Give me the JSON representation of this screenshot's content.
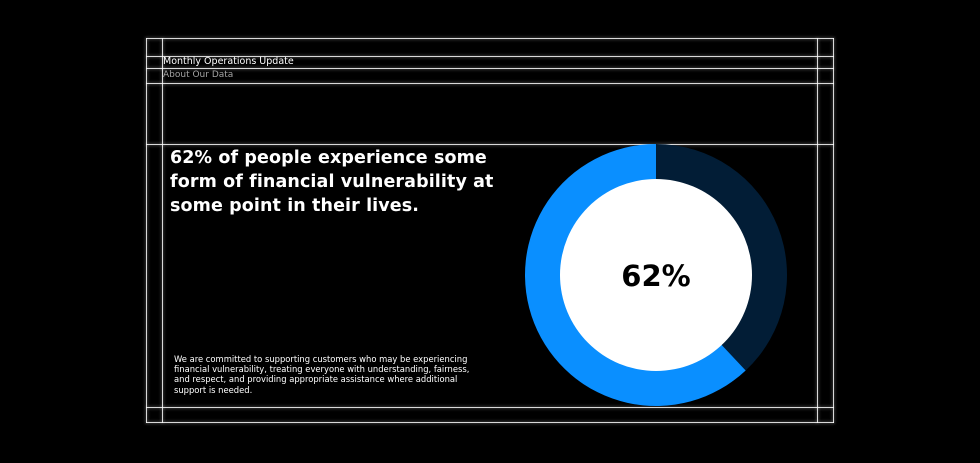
{
  "header": {
    "title": "Monthly Operations Update",
    "subtitle": "About Our Data"
  },
  "main": {
    "headline": "62% of people experience some form of financial vulnerability at some point in their lives.",
    "body": "We are committed to supporting customers who may be experiencing financial vulnerability, treating everyone with understanding, fairness, and respect, and providing appropriate assistance where additional support is needed."
  },
  "chart_data": {
    "type": "pie",
    "variant": "donut",
    "center_label": "62%",
    "values": [
      62,
      38
    ],
    "colors": [
      "#0a8fff",
      "#021d36"
    ],
    "center_color": "#ffffff"
  }
}
